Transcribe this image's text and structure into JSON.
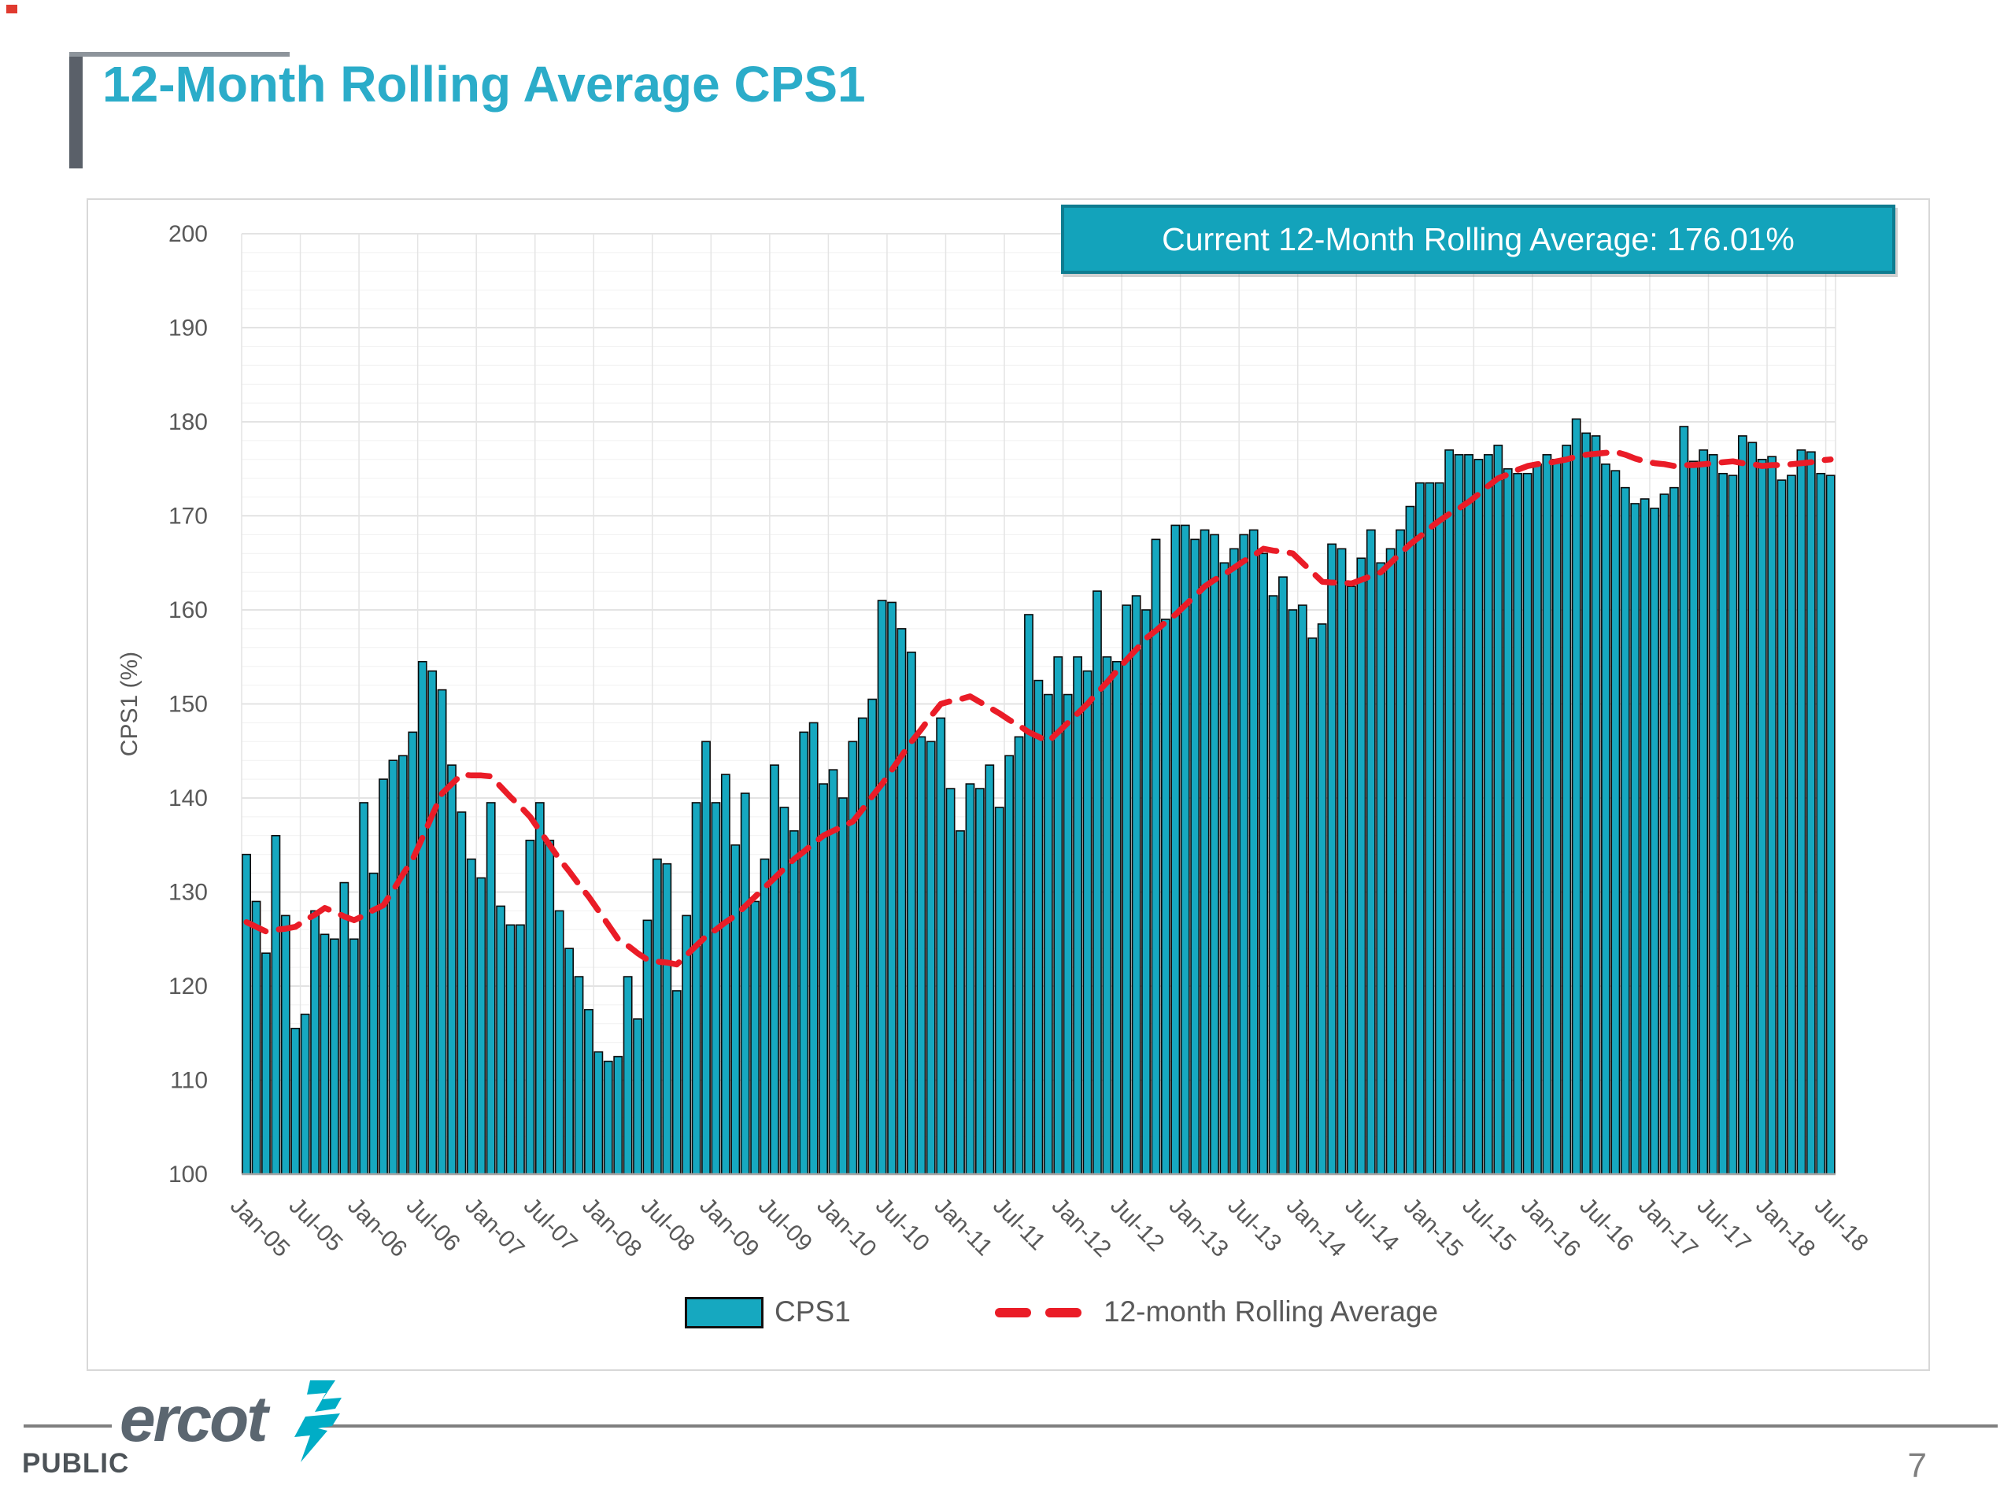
{
  "header": {
    "title": "12-Month Rolling Average CPS1"
  },
  "callout": {
    "text": "Current 12-Month Rolling Average: 176.01%"
  },
  "legend": {
    "cps1_label": "CPS1",
    "rolling_label": "12-month Rolling Average"
  },
  "footer": {
    "brand": "ercot",
    "classification": "PUBLIC",
    "page_number": "7"
  },
  "colors": {
    "title_teal": "#2bacc9",
    "callout_fill": "#13a3bb",
    "callout_border": "#0e7c90",
    "bar_fill": "#16a8c0",
    "bar_stroke": "#0a0a0a",
    "line_red": "#ea1c27",
    "axis_text": "#595959",
    "grid_major": "#dadada",
    "grid_minor": "#f1f1f1",
    "grid_vertical": "#e4e4e4"
  },
  "chart_data": {
    "type": "bar",
    "title": "",
    "xlabel": "",
    "ylabel": "CPS1 (%)",
    "ylim": [
      100,
      200
    ],
    "y_tick_step": 10,
    "y_tick_labels": [
      100,
      110,
      120,
      130,
      140,
      150,
      160,
      170,
      180,
      190,
      200
    ],
    "grid": true,
    "legend_position": "bottom",
    "x_frequency": "monthly",
    "start_month": "Jan-05",
    "end_month": "Jul-18",
    "x_tick_every_n_months": 6,
    "x_tick_labels": [
      "Jan-05",
      "Jul-05",
      "Jan-06",
      "Jul-06",
      "Jan-07",
      "Jul-07",
      "Jan-08",
      "Jul-08",
      "Jan-09",
      "Jul-09",
      "Jan-10",
      "Jul-10",
      "Jan-11",
      "Jul-11",
      "Jan-12",
      "Jul-12",
      "Jan-13",
      "Jul-13",
      "Jan-14",
      "Jul-14",
      "Jan-15",
      "Jul-15",
      "Jan-16",
      "Jul-16",
      "Jan-17",
      "Jul-17",
      "Jan-18",
      "Jul-18"
    ],
    "series": [
      {
        "name": "CPS1",
        "type": "bar",
        "values": [
          134.0,
          129.0,
          123.5,
          136.0,
          127.5,
          115.5,
          117.0,
          128.0,
          125.5,
          125.0,
          131.0,
          125.0,
          139.5,
          132.0,
          142.0,
          144.0,
          144.5,
          147.0,
          154.5,
          153.5,
          151.5,
          143.5,
          138.5,
          133.5,
          131.5,
          139.5,
          128.5,
          126.5,
          126.5,
          135.5,
          139.5,
          135.5,
          128.0,
          124.0,
          121.0,
          117.5,
          113.0,
          112.0,
          112.5,
          121.0,
          116.5,
          127.0,
          133.5,
          133.0,
          119.5,
          127.5,
          139.5,
          146.0,
          139.5,
          142.5,
          135.0,
          140.5,
          129.0,
          133.5,
          143.5,
          139.0,
          136.5,
          147.0,
          148.0,
          141.5,
          143.0,
          140.0,
          146.0,
          148.5,
          150.5,
          161.0,
          160.8,
          158.0,
          155.5,
          146.5,
          146.0,
          148.5,
          141.0,
          136.5,
          141.5,
          141.0,
          143.5,
          139.0,
          144.5,
          146.5,
          159.5,
          152.5,
          151.0,
          155.0,
          151.0,
          155.0,
          153.5,
          162.0,
          155.0,
          154.5,
          160.5,
          161.5,
          160.0,
          167.5,
          159.0,
          169.0,
          169.0,
          167.5,
          168.5,
          168.0,
          165.0,
          166.5,
          168.0,
          168.5,
          166.0,
          161.5,
          163.5,
          160.0,
          160.5,
          157.0,
          158.5,
          167.0,
          166.5,
          162.5,
          165.5,
          168.5,
          165.0,
          166.5,
          168.5,
          171.0,
          173.5,
          173.5,
          173.5,
          177.0,
          176.5,
          176.5,
          176.0,
          176.5,
          177.5,
          175.0,
          174.5,
          174.5,
          175.5,
          176.5,
          176.0,
          177.5,
          180.3,
          178.8,
          178.5,
          175.5,
          174.8,
          173.0,
          171.3,
          171.8,
          170.8,
          172.3,
          173.0,
          179.5,
          175.8,
          177.0,
          176.5,
          174.5,
          174.3,
          178.5,
          177.8,
          176.0,
          176.3,
          173.8,
          174.3,
          177.0,
          176.8,
          174.5,
          174.3
        ]
      },
      {
        "name": "12-month Rolling Average",
        "type": "dashed-line",
        "current_value": "176.01%",
        "values": [
          126.8,
          126.3,
          125.8,
          126.0,
          126.1,
          126.3,
          127.0,
          127.6,
          128.3,
          127.9,
          127.4,
          127.0,
          127.5,
          128.1,
          128.6,
          130.2,
          131.9,
          133.5,
          135.8,
          138.2,
          140.5,
          141.5,
          142.5,
          142.4,
          142.4,
          142.3,
          141.2,
          140.1,
          139.1,
          138.0,
          136.5,
          135.0,
          133.5,
          132.2,
          130.8,
          129.5,
          128.0,
          126.5,
          125.0,
          124.3,
          123.5,
          122.8,
          122.6,
          122.5,
          122.3,
          123.3,
          124.3,
          125.3,
          126.0,
          126.8,
          127.5,
          128.5,
          129.5,
          130.5,
          131.5,
          132.5,
          133.5,
          134.3,
          135.2,
          136.0,
          136.5,
          137.0,
          137.5,
          138.8,
          140.2,
          141.5,
          143.0,
          144.5,
          146.0,
          147.3,
          148.7,
          150.0,
          150.3,
          150.5,
          150.8,
          150.2,
          149.6,
          149.0,
          148.3,
          147.7,
          147.0,
          146.5,
          146.0,
          147.0,
          148.0,
          149.0,
          150.0,
          151.2,
          152.3,
          153.5,
          154.7,
          155.8,
          157.0,
          157.8,
          158.7,
          159.5,
          160.5,
          161.5,
          162.5,
          163.2,
          163.8,
          164.5,
          165.2,
          165.8,
          166.5,
          166.3,
          166.2,
          166.0,
          165.0,
          164.0,
          163.0,
          162.9,
          162.9,
          162.8,
          163.2,
          163.6,
          164.0,
          165.0,
          166.0,
          167.0,
          167.8,
          168.7,
          169.5,
          170.2,
          170.8,
          171.5,
          172.3,
          173.2,
          174.0,
          174.4,
          174.9,
          175.3,
          175.5,
          175.6,
          175.8,
          176.0,
          176.3,
          176.5,
          176.6,
          176.7,
          176.8,
          176.5,
          176.1,
          175.8,
          175.6,
          175.5,
          175.3,
          175.4,
          175.4,
          175.5,
          175.6,
          175.7,
          175.8,
          175.6,
          175.5,
          175.3,
          175.4,
          175.4,
          175.5,
          175.6,
          175.7,
          175.9,
          176.0
        ]
      }
    ]
  }
}
